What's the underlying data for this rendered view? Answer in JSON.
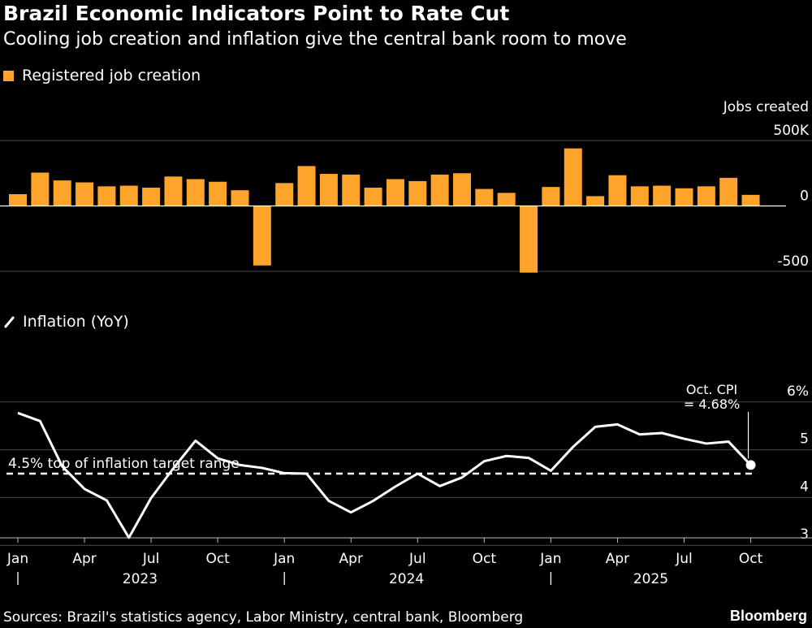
{
  "header": {
    "title": "Brazil Economic Indicators Point to Rate Cut",
    "subtitle": "Cooling job creation and inflation give the central bank room to move"
  },
  "colors": {
    "bars": "#FFA42B",
    "line": "#FFFFFF",
    "background": "#000000",
    "grid": "#4a4a4a"
  },
  "footer": {
    "source": "Sources: Brazil's statistics agency, Labor Ministry, central bank, Bloomberg",
    "brand": "Bloomberg"
  },
  "chart_data": [
    {
      "type": "bar",
      "legend": "Registered job creation",
      "unit_label": "Jobs created",
      "ylim": [
        -500,
        500
      ],
      "y_ticks": [
        500,
        0,
        -500
      ],
      "y_tick_labels": [
        "500K",
        "0",
        "-500"
      ],
      "categories": [
        "2023-01",
        "2023-02",
        "2023-03",
        "2023-04",
        "2023-05",
        "2023-06",
        "2023-07",
        "2023-08",
        "2023-09",
        "2023-10",
        "2023-11",
        "2023-12",
        "2024-01",
        "2024-02",
        "2024-03",
        "2024-04",
        "2024-05",
        "2024-06",
        "2024-07",
        "2024-08",
        "2024-09",
        "2024-10",
        "2024-11",
        "2024-12",
        "2025-01",
        "2025-02",
        "2025-03",
        "2025-04",
        "2025-05",
        "2025-06",
        "2025-07",
        "2025-08",
        "2025-09",
        "2025-10"
      ],
      "values": [
        90,
        255,
        195,
        180,
        150,
        155,
        140,
        225,
        205,
        185,
        120,
        -455,
        175,
        305,
        245,
        240,
        140,
        205,
        190,
        240,
        250,
        130,
        100,
        -510,
        145,
        440,
        75,
        235,
        150,
        155,
        135,
        150,
        215,
        85
      ],
      "grid": true
    },
    {
      "type": "line",
      "legend": "Inflation (YoY)",
      "ylim": [
        2.8,
        6.2
      ],
      "y_ticks": [
        3,
        4,
        5,
        6
      ],
      "y_tick_labels": [
        "3",
        "4",
        "5",
        "6%"
      ],
      "x": [
        "2023-01",
        "2023-02",
        "2023-03",
        "2023-04",
        "2023-05",
        "2023-06",
        "2023-07",
        "2023-08",
        "2023-09",
        "2023-10",
        "2023-11",
        "2023-12",
        "2024-01",
        "2024-02",
        "2024-03",
        "2024-04",
        "2024-05",
        "2024-06",
        "2024-07",
        "2024-08",
        "2024-09",
        "2024-10",
        "2024-11",
        "2024-12",
        "2025-01",
        "2025-02",
        "2025-03",
        "2025-04",
        "2025-05",
        "2025-06",
        "2025-07",
        "2025-08",
        "2025-09",
        "2025-10"
      ],
      "values": [
        5.77,
        5.6,
        4.65,
        4.18,
        3.94,
        3.16,
        3.99,
        4.61,
        5.19,
        4.82,
        4.68,
        4.62,
        4.51,
        4.5,
        3.93,
        3.69,
        3.93,
        4.23,
        4.5,
        4.24,
        4.42,
        4.76,
        4.87,
        4.83,
        4.56,
        5.06,
        5.48,
        5.53,
        5.32,
        5.35,
        5.23,
        5.13,
        5.17,
        4.68
      ],
      "reference_line": {
        "value": 4.5,
        "label": "4.5% top of inflation target range"
      },
      "annotation": {
        "line1": "Oct. CPI",
        "line2": "= 4.68%"
      },
      "grid": true
    }
  ],
  "x_axis": {
    "month_labels": [
      "Jan",
      "Apr",
      "Jul",
      "Oct",
      "Jan",
      "Apr",
      "Jul",
      "Oct",
      "Jan",
      "Apr",
      "Jul",
      "Oct"
    ],
    "year_labels": [
      "2023",
      "2024",
      "2025"
    ]
  }
}
